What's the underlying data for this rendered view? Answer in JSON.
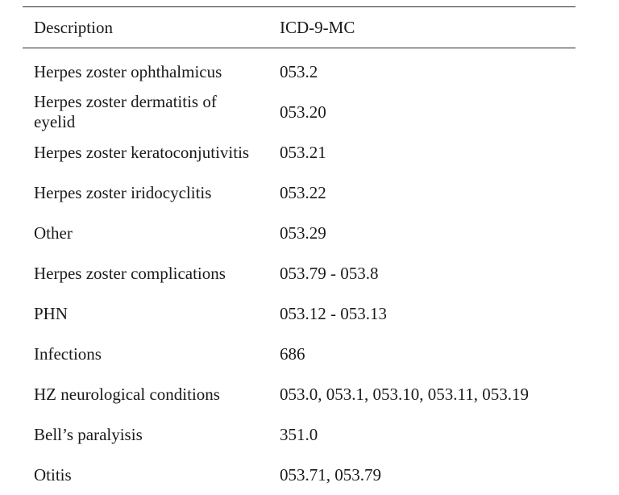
{
  "table": {
    "headers": {
      "description": "Description",
      "code": "ICD-9-MC"
    },
    "rows": [
      {
        "description": "Herpes zoster ophthalmicus",
        "code": "053.2"
      },
      {
        "description": "Herpes zoster dermatitis of eyelid",
        "code": "053.20"
      },
      {
        "description": "Herpes zoster keratoconjutivitis",
        "code": "053.21"
      },
      {
        "description": "Herpes zoster iridocyclitis",
        "code": "053.22"
      },
      {
        "description": "Other",
        "code": "053.29"
      },
      {
        "description": "Herpes zoster complications",
        "code": "053.79 - 053.8"
      },
      {
        "description": "PHN",
        "code": "053.12 - 053.13"
      },
      {
        "description": "Infections",
        "code": "686"
      },
      {
        "description": "HZ neurological conditions",
        "code": "053.0, 053.1, 053.10, 053.11, 053.19"
      },
      {
        "description": "Bell’s paralyisis",
        "code": "351.0"
      },
      {
        "description": "Otitis",
        "code": "053.71, 053.79"
      }
    ]
  }
}
